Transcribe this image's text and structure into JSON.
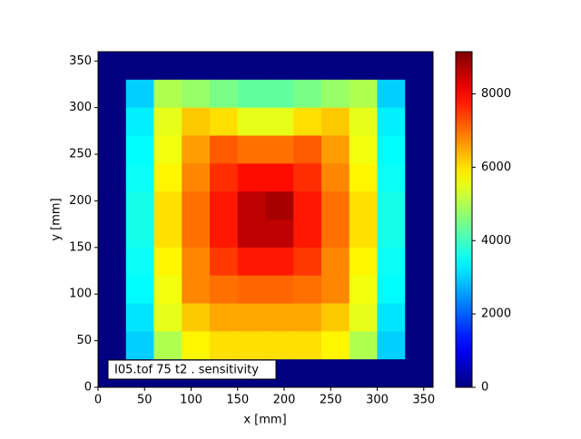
{
  "chart_data": {
    "type": "heatmap",
    "xlabel": "x [mm]",
    "ylabel": "y [mm]",
    "annotation": "I05.tof 75 t2 .  sensitivity",
    "xlim": [
      0,
      360
    ],
    "ylim": [
      0,
      360
    ],
    "xticks": [
      0,
      50,
      100,
      150,
      200,
      250,
      300,
      350
    ],
    "yticks": [
      0,
      50,
      100,
      150,
      200,
      250,
      300,
      350
    ],
    "colormap": "jet",
    "zlim": [
      0,
      9150
    ],
    "zticks": [
      0,
      2000,
      4000,
      6000,
      8000
    ],
    "z": [
      [
        0,
        0,
        0,
        0,
        0,
        0,
        0,
        0,
        0,
        0,
        0,
        0
      ],
      [
        0,
        3000,
        5000,
        4800,
        4500,
        4300,
        4300,
        4500,
        4800,
        5000,
        3000,
        0
      ],
      [
        0,
        3300,
        5500,
        6200,
        6000,
        5500,
        5500,
        6000,
        6200,
        5500,
        3300,
        0
      ],
      [
        0,
        3400,
        5600,
        6600,
        7200,
        7000,
        7000,
        7200,
        6600,
        5600,
        3400,
        0
      ],
      [
        0,
        3500,
        5800,
        6800,
        7600,
        7900,
        7900,
        7600,
        6800,
        5800,
        3500,
        0
      ],
      [
        0,
        3600,
        6000,
        7000,
        7800,
        8600,
        8800,
        7800,
        7000,
        6000,
        3600,
        0
      ],
      [
        0,
        3600,
        6000,
        7000,
        7800,
        8600,
        8600,
        7800,
        7000,
        6000,
        3600,
        0
      ],
      [
        0,
        3500,
        5800,
        6800,
        7500,
        7800,
        7800,
        7500,
        6800,
        5800,
        3500,
        0
      ],
      [
        0,
        3400,
        5600,
        6800,
        7000,
        7100,
        7100,
        7000,
        6800,
        5600,
        3400,
        0
      ],
      [
        0,
        3200,
        5500,
        6200,
        6500,
        6500,
        6500,
        6500,
        6200,
        5500,
        3200,
        0
      ],
      [
        0,
        3000,
        5000,
        5800,
        6000,
        6000,
        6000,
        6000,
        5800,
        5000,
        3000,
        0
      ],
      [
        0,
        0,
        0,
        0,
        0,
        0,
        0,
        0,
        0,
        0,
        0,
        0
      ]
    ]
  }
}
